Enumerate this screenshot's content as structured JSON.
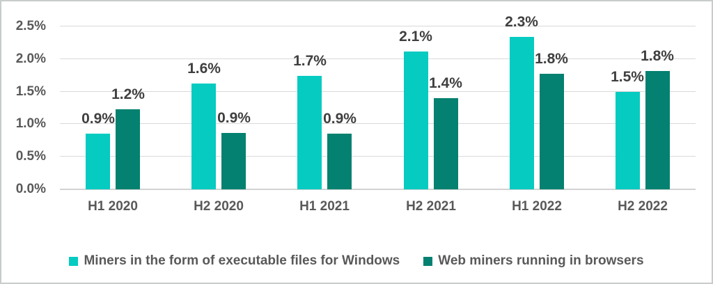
{
  "chart_data": {
    "type": "bar",
    "title": "",
    "xlabel": "",
    "ylabel": "",
    "categories": [
      "H1 2020",
      "H2 2020",
      "H1 2021",
      "H2 2021",
      "H1 2022",
      "H2 2022"
    ],
    "series": [
      {
        "name": "Miners in the form of executable files for Windows",
        "color": "#05cbc1",
        "values": [
          0.86,
          1.62,
          1.74,
          2.12,
          2.34,
          1.5
        ],
        "labels": [
          "0.9%",
          "1.6%",
          "1.7%",
          "2.1%",
          "2.3%",
          "1.5%"
        ]
      },
      {
        "name": "Web miners running in browsers",
        "color": "#048170",
        "values": [
          1.23,
          0.87,
          0.86,
          1.4,
          1.77,
          1.82
        ],
        "labels": [
          "1.2%",
          "0.9%",
          "0.9%",
          "1.4%",
          "1.8%",
          "1.8%"
        ]
      }
    ],
    "yticks": [
      {
        "label": "0.0%",
        "value": 0.0
      },
      {
        "label": "0.5%",
        "value": 0.5
      },
      {
        "label": "1.0%",
        "value": 1.0
      },
      {
        "label": "1.5%",
        "value": 1.5
      },
      {
        "label": "2.0%",
        "value": 2.0
      },
      {
        "label": "2.5%",
        "value": 2.5
      }
    ],
    "ylim": [
      0,
      2.5
    ],
    "grid": true,
    "legend_position": "bottom"
  },
  "colors": {
    "series_executable_miners": "#05cbc1",
    "series_web_miners": "#048170",
    "gridline": "#d9d9d9",
    "axis_line": "#d2d2d2",
    "tick_text": "#595959",
    "data_label_text": "#3f3f3f",
    "frame_border": "#c8ccca"
  }
}
